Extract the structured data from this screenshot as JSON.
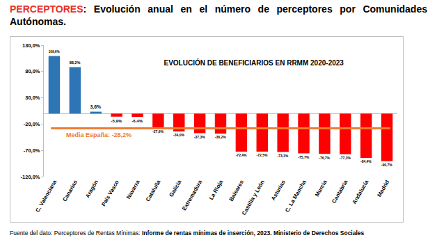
{
  "header": {
    "highlight": "PERCEPTORES",
    "text": ": Evolución anual en el número de perceptores por Comunidades Autónomas."
  },
  "chart_data": {
    "type": "bar",
    "title": "EVOLUCIÓN DE BENEFICIARIOS EN RRMM 2020-2023",
    "categories": [
      "C. Valenciana",
      "Canarias",
      "Aragón",
      "País Vasco",
      "Navarra",
      "Cataluña",
      "Galicia",
      "Extremadura",
      "La Rioja",
      "Baleares",
      "Castilla y León",
      "Asturias",
      "C. La Mancha",
      "Murcia",
      "Cantabria",
      "Andalucía",
      "Madrid"
    ],
    "values": [
      109.6,
      88.2,
      3.6,
      -5.9,
      -6.4,
      -27.6,
      -34.0,
      -37.3,
      -38.2,
      -72.4,
      -72.5,
      -73.1,
      -75.7,
      -76.7,
      -77.3,
      -84.4,
      -90.7
    ],
    "value_labels": [
      "109,6%",
      "88,2%",
      "3,6%",
      "-5,9%",
      "-6,4%",
      "-27,6%",
      "-34,0%",
      "-37,3%",
      "-38,2%",
      "-72,4%",
      "-72,5%",
      "-73,1%",
      "-75,7%",
      "-76,7%",
      "-77,3%",
      "-84,4%",
      "-90,7%"
    ],
    "colors": [
      "#2e75b6",
      "#2e75b6",
      "#2e75b6",
      "#ff0000",
      "#ff0000",
      "#ff0000",
      "#ff0000",
      "#ff0000",
      "#ff0000",
      "#ff0000",
      "#ff0000",
      "#ff0000",
      "#ff0000",
      "#ff0000",
      "#ff0000",
      "#ff0000",
      "#ff0000"
    ],
    "ylim": [
      -120,
      130
    ],
    "yticks": [
      {
        "value": 130,
        "label": "130,0%"
      },
      {
        "value": 80,
        "label": "80,0%"
      },
      {
        "value": 30,
        "label": "30,0%"
      },
      {
        "value": -20,
        "label": "-20,0%"
      },
      {
        "value": -70,
        "label": "-70,0%"
      },
      {
        "value": -120,
        "label": "-120,0%"
      }
    ],
    "grid": false,
    "data_labels": true,
    "annotations": [
      {
        "text": "Media España: -28,2%",
        "y": -28.2,
        "color": "#ed7d31"
      }
    ]
  },
  "footer": {
    "prefix": "Fuente del dato: Perceptores de Rentas Mínimas: ",
    "emphasis": "Informe de rentas mínimas de inserción, 2023. Ministerio de Derechos Sociales"
  }
}
